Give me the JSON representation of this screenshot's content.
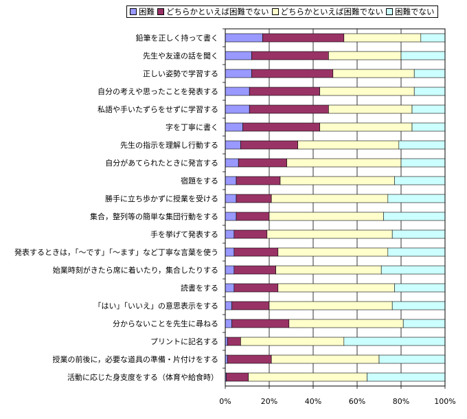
{
  "chart_data": {
    "type": "bar",
    "orientation": "horizontal",
    "stacked": true,
    "percent": true,
    "categories": [
      "鉛筆を正しく持って書く",
      "先生や友達の話を聞く",
      "正しい姿勢で学習する",
      "自分の考えや思ったことを発表する",
      "私語や手いたずらをせずに学習する",
      "字を丁寧に書く",
      "先生の指示を理解し行動する",
      "自分があてられたときに発言する",
      "宿題をする",
      "勝手に立ち歩かずに授業を受ける",
      "集合，整列等の簡単な集団行動をする",
      "手を挙げて発表する",
      "発表するときは，「～です」「～ます」など丁寧な言葉を使う",
      "始業時刻がきたら席に着いたり，集合したりする",
      "読書をする",
      "「はい」「いいえ」の意思表示をする",
      "分からないことを先生に尋ねる",
      "プリントに記名する",
      "授業の前後に，必要な道具の準備・片付けをする",
      "活動に応じた身支度をする（体育や給食時）"
    ],
    "series": [
      {
        "name": "困難",
        "color": "#9999ff",
        "values": [
          17,
          12,
          12,
          11,
          11,
          8,
          7,
          6,
          5,
          5,
          5,
          4,
          4,
          4,
          4,
          3,
          3,
          1,
          1,
          0.5
        ]
      },
      {
        "name": "どちらかといえば困難でない",
        "color": "#993366",
        "values": [
          37,
          35,
          37,
          32,
          36,
          35,
          26,
          22,
          20,
          16,
          15,
          15,
          20,
          19,
          20,
          17,
          26,
          6,
          20,
          10
        ]
      },
      {
        "name": "どちらかといえば困難でない",
        "color": "#ffffcc",
        "values": [
          35,
          33,
          37,
          43,
          38,
          42,
          46,
          52,
          52,
          53,
          52,
          57,
          50,
          48,
          53,
          56,
          52,
          47,
          49,
          54
        ]
      },
      {
        "name": "困難でない",
        "color": "#ccffff",
        "values": [
          11,
          20,
          14,
          14,
          15,
          15,
          21,
          20,
          23,
          26,
          28,
          24,
          26,
          29,
          23,
          24,
          19,
          46,
          30,
          35.5
        ]
      }
    ],
    "x_ticks": [
      "0%",
      "20%",
      "40%",
      "60%",
      "80%",
      "100%"
    ],
    "xlim": [
      0,
      100
    ],
    "grid": true,
    "legend_position": "top"
  }
}
